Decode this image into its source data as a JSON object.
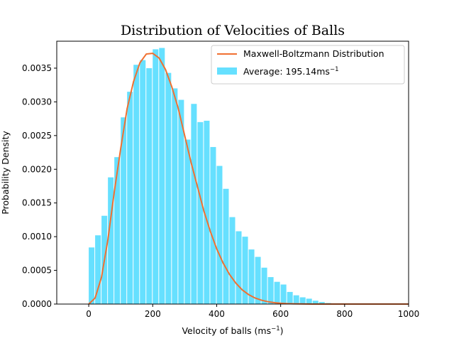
{
  "chart_data": {
    "type": "bar",
    "title": "Distribution of Velocities of Balls",
    "xlabel": {
      "text": "Velocity of balls (ms",
      "sup": "−1",
      "close": ")"
    },
    "ylabel": "Probability Density",
    "xlim": [
      -100,
      1000
    ],
    "ylim": [
      0,
      0.0039
    ],
    "xticks": [
      0,
      200,
      400,
      600,
      800,
      1000
    ],
    "xtick_labels": [
      "0",
      "200",
      "400",
      "600",
      "800",
      "1000"
    ],
    "yticks": [
      0,
      0.0005,
      0.001,
      0.0015,
      0.002,
      0.0025,
      0.003,
      0.0035
    ],
    "ytick_labels": [
      "0.0000",
      "0.0005",
      "0.0010",
      "0.0015",
      "0.0020",
      "0.0025",
      "0.0030",
      "0.0035"
    ],
    "grid": false,
    "legend_position": "top-right",
    "histogram": {
      "name": {
        "text": "Average: 195.14ms",
        "sup": "−1"
      },
      "color": "#66e0ff",
      "bin_width": 20,
      "bin_edges_start": 0,
      "values": [
        0.00084,
        0.00102,
        0.00131,
        0.00188,
        0.00218,
        0.00277,
        0.00315,
        0.00355,
        0.00362,
        0.0035,
        0.00378,
        0.0038,
        0.00343,
        0.0032,
        0.00303,
        0.00244,
        0.00297,
        0.0027,
        0.00272,
        0.00233,
        0.00205,
        0.00171,
        0.00129,
        0.00108,
        0.001,
        0.00081,
        0.0007,
        0.00054,
        0.0004,
        0.00033,
        0.00029,
        0.00018,
        0.00013,
        0.0001,
        8e-05,
        5e-05,
        3e-05,
        1.5e-05,
        1e-05,
        5e-06
      ]
    },
    "curve": {
      "name": "Maxwell-Boltzmann Distribution",
      "color": "#f07031",
      "x": [
        0,
        20,
        40,
        60,
        80,
        100,
        120,
        140,
        160,
        180,
        200,
        220,
        240,
        260,
        280,
        300,
        320,
        340,
        360,
        380,
        400,
        420,
        440,
        460,
        480,
        500,
        520,
        540,
        560,
        580,
        600,
        620,
        640,
        660,
        680,
        700,
        750,
        800,
        850,
        900,
        950,
        1000
      ],
      "y": [
        0,
        9e-05,
        0.0004,
        0.00096,
        0.00167,
        0.00231,
        0.0029,
        0.0033,
        0.00358,
        0.00371,
        0.00372,
        0.00365,
        0.00348,
        0.00322,
        0.0029,
        0.0025,
        0.0021,
        0.00174,
        0.00138,
        0.00108,
        0.00082,
        0.00061,
        0.00044,
        0.00031,
        0.00021,
        0.00014,
        9e-05,
        5.7e-05,
        3.5e-05,
        2.1e-05,
        1.2e-05,
        7e-06,
        4e-06,
        2e-06,
        1e-06,
        5e-07,
        1e-07,
        0,
        0,
        0,
        0,
        0
      ]
    }
  }
}
